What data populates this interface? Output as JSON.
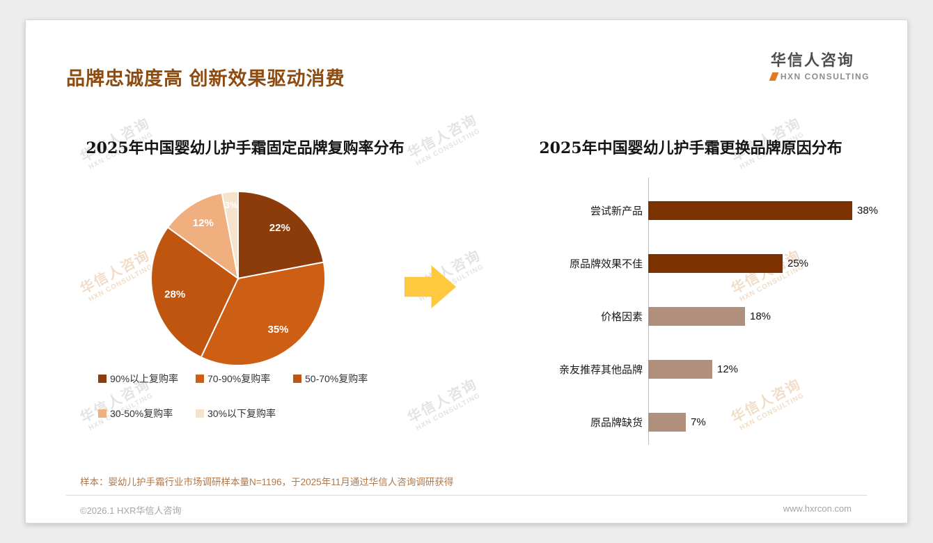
{
  "header": {
    "title": "品牌忠诚度高 创新效果驱动消费",
    "logo_cn": "华信人咨询",
    "logo_en": "HXN CONSULTING"
  },
  "watermark": {
    "line1": "华信人咨询",
    "line2": "HXN CONSULTING"
  },
  "chart_data": [
    {
      "type": "pie",
      "title": "2025年中国婴幼儿护手霜固定品牌复购率分布",
      "labels": [
        "90%以上复购率",
        "70-90%复购率",
        "50-70%复购率",
        "30-50%复购率",
        "30%以下复购率"
      ],
      "values": [
        22,
        35,
        28,
        12,
        3
      ],
      "value_labels": [
        "22%",
        "35%",
        "28%",
        "12%",
        "3%"
      ],
      "colors": [
        "#8B3C0A",
        "#CC5F14",
        "#C05510",
        "#F0AF7E",
        "#F7E2CC"
      ],
      "start_angle_deg": 0,
      "direction": "clockwise",
      "legend_position": "bottom"
    },
    {
      "type": "bar",
      "orientation": "horizontal",
      "title": "2025年中国婴幼儿护手霜更换品牌原因分布",
      "categories": [
        "尝试新产品",
        "原品牌效果不佳",
        "价格因素",
        "亲友推荐其他品牌",
        "原品牌缺货"
      ],
      "values": [
        38,
        25,
        18,
        12,
        7
      ],
      "value_labels": [
        "38%",
        "25%",
        "18%",
        "12%",
        "7%"
      ],
      "bar_colors": [
        "#7B3100",
        "#7B3100",
        "#B18F7D",
        "#B18F7D",
        "#B18F7D"
      ],
      "xlim": [
        0,
        40
      ],
      "grid": false
    }
  ],
  "footnote": "样本：婴幼儿护手霜行业市场调研样本量N=1196，于2025年11月通过华信人咨询调研获得",
  "footer": {
    "left": "©2026.1 HXR华信人咨询",
    "right": "www.hxrcon.com"
  },
  "colors": {
    "accent_brown": "#8E4B10",
    "arrow_yellow": "#FFC93F"
  }
}
